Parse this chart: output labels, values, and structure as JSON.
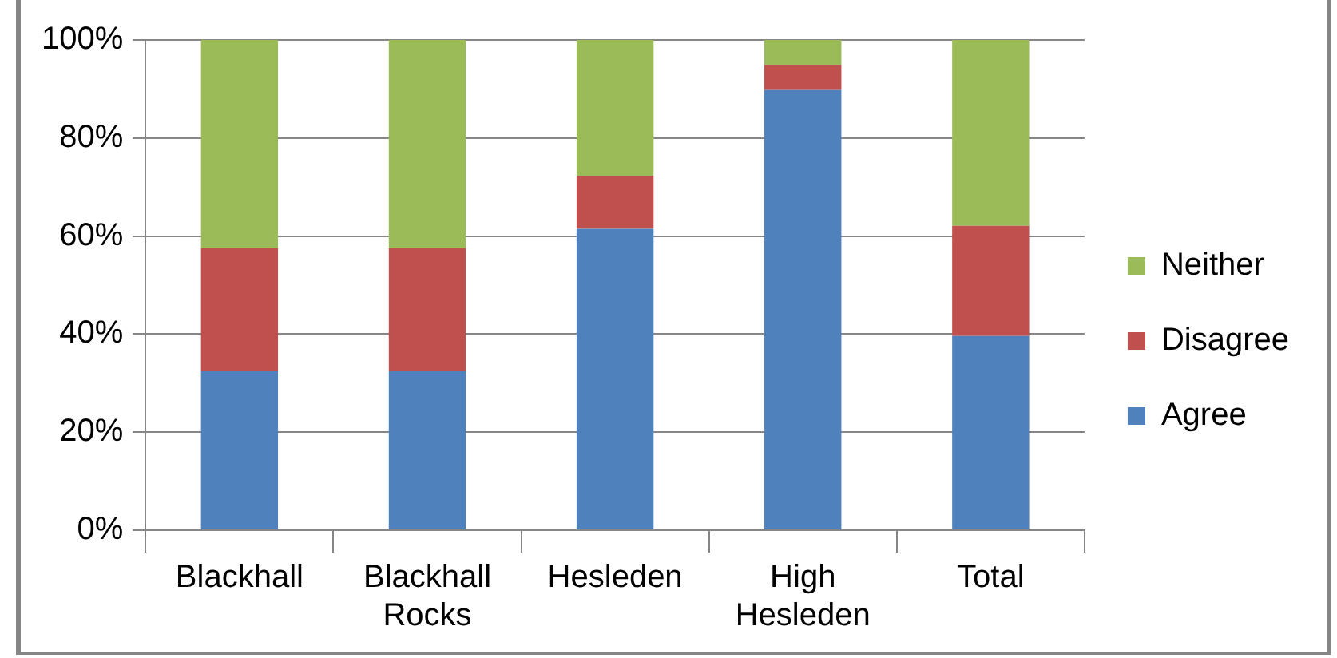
{
  "chart_data": {
    "type": "bar",
    "stacked": true,
    "categories": [
      "Blackhall",
      "Blackhall Rocks",
      "Hesleden",
      "High Hesleden",
      "Total"
    ],
    "series": [
      {
        "name": "Agree",
        "color": "#4f81bd",
        "values": [
          32.4,
          32.4,
          61.5,
          89.8,
          39.6
        ]
      },
      {
        "name": "Disagree",
        "color": "#c0504d",
        "values": [
          25.1,
          25.1,
          10.8,
          5.1,
          22.5
        ]
      },
      {
        "name": "Neither",
        "color": "#9bbb59",
        "values": [
          42.5,
          42.5,
          27.7,
          5.1,
          37.9
        ]
      }
    ],
    "ylim": [
      0,
      100
    ],
    "yticks": [
      {
        "value": 0,
        "label": "0%"
      },
      {
        "value": 20,
        "label": "20%"
      },
      {
        "value": 40,
        "label": "40%"
      },
      {
        "value": 60,
        "label": "60%"
      },
      {
        "value": 80,
        "label": "80%"
      },
      {
        "value": 100,
        "label": "100%"
      }
    ],
    "grid": "y",
    "legend": "right"
  }
}
